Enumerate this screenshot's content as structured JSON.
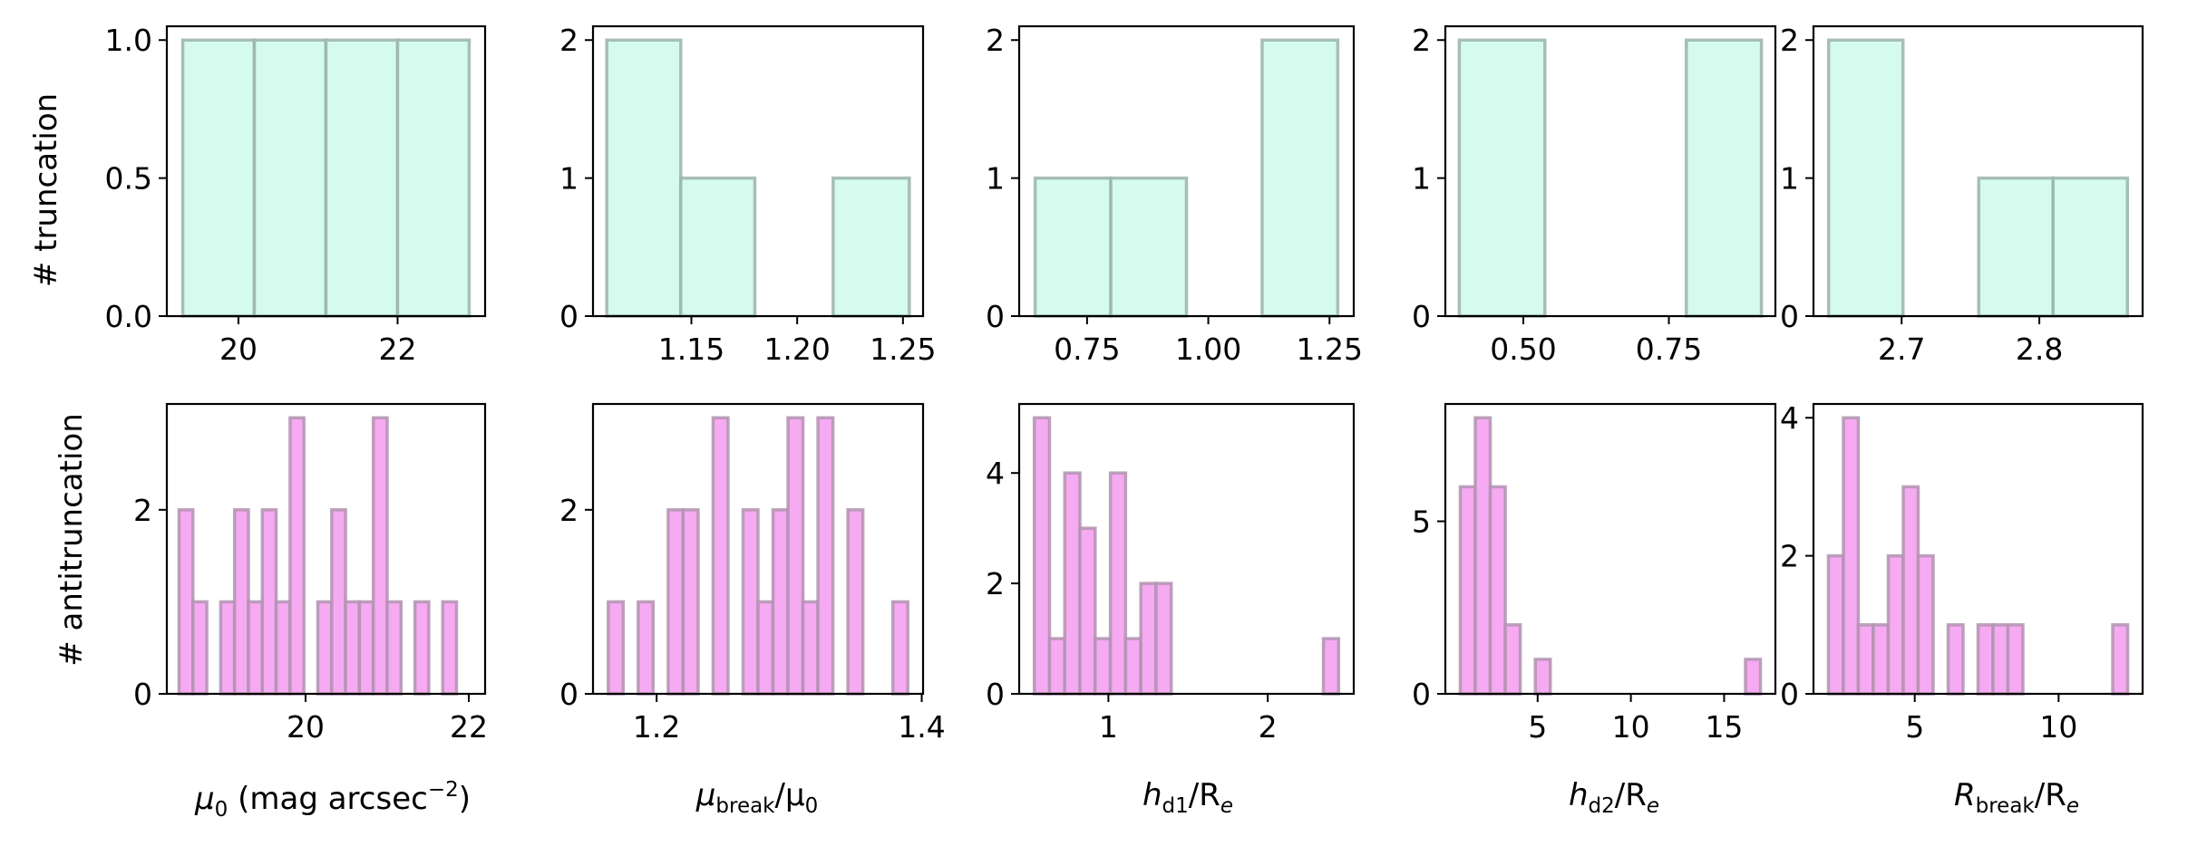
{
  "figure": {
    "row_labels": [
      "# truncation",
      "# antitruncation"
    ],
    "column_labels": [
      {
        "main": "μ",
        "sub": "0",
        "rest": " (mag arcsec",
        "sup": "−2",
        "tail": ")"
      },
      {
        "main": "μ",
        "sub": "break",
        "rest": "/μ",
        "sub2": "0"
      },
      {
        "main": "h",
        "sub": "d1",
        "rest": "/R",
        "sub2": "e"
      },
      {
        "main": "h",
        "sub": "d2",
        "rest": "/R",
        "sub2": "e"
      },
      {
        "main": "R",
        "sub": "break",
        "rest": "/R",
        "sub2": "e"
      }
    ]
  },
  "colors": {
    "truncation_fill": "#d4fbee",
    "truncation_edge": "#9bb3aa",
    "antitruncation_fill": "#f6aaf2",
    "antitruncation_edge": "#b193b0"
  },
  "chart_data": [
    {
      "type": "bar",
      "row": "truncation",
      "variable": "mu0",
      "bin_edges": [
        19.3,
        20.2,
        21.1,
        22.0,
        22.9
      ],
      "counts": [
        1,
        1,
        1,
        1
      ],
      "xlim": [
        19.1,
        23.1
      ],
      "ylim": [
        0,
        1.05
      ],
      "xticks": [
        20,
        22
      ],
      "xticklabels": [
        "20",
        "22"
      ],
      "yticks": [
        0,
        0.5,
        1.0
      ],
      "yticklabels": [
        "0.0",
        "0.5",
        "1.0"
      ],
      "ylabel": "# truncation",
      "xlabel": ""
    },
    {
      "type": "bar",
      "row": "truncation",
      "variable": "mu_break/mu0",
      "bin_edges": [
        1.11,
        1.145,
        1.18,
        1.217,
        1.253
      ],
      "counts": [
        2,
        1,
        0,
        1
      ],
      "xlim": [
        1.1035,
        1.2595
      ],
      "ylim": [
        0,
        2.1
      ],
      "xticks": [
        1.15,
        1.2,
        1.25
      ],
      "xticklabels": [
        "1.15",
        "1.20",
        "1.25"
      ],
      "yticks": [
        0,
        1,
        2
      ],
      "yticklabels": [
        "0",
        "1",
        "2"
      ],
      "ylabel": "",
      "xlabel": ""
    },
    {
      "type": "bar",
      "row": "truncation",
      "variable": "hd1/Re",
      "bin_edges": [
        0.643,
        0.799,
        0.955,
        1.111,
        1.267
      ],
      "counts": [
        1,
        1,
        0,
        2
      ],
      "xlim": [
        0.61,
        1.3
      ],
      "ylim": [
        0,
        2.1
      ],
      "xticks": [
        0.75,
        1.0,
        1.25
      ],
      "xticklabels": [
        "0.75",
        "1.00",
        "1.25"
      ],
      "yticks": [
        0,
        1,
        2
      ],
      "yticklabels": [
        "0",
        "1",
        "2"
      ],
      "ylabel": "",
      "xlabel": ""
    },
    {
      "type": "bar",
      "row": "truncation",
      "variable": "hd2/Re",
      "bin_edges": [
        0.39,
        0.537,
        0.78,
        0.909
      ],
      "counts": [
        2,
        0,
        2
      ],
      "xlim": [
        0.366,
        0.933
      ],
      "ylim": [
        0,
        2.1
      ],
      "xticks": [
        0.5,
        0.75
      ],
      "xticklabels": [
        "0.50",
        "0.75"
      ],
      "yticks": [
        0,
        1,
        2
      ],
      "yticklabels": [
        "0",
        "1",
        "2"
      ],
      "ylabel": "",
      "xlabel": ""
    },
    {
      "type": "bar",
      "row": "truncation",
      "variable": "R_break/Re",
      "bin_edges": [
        2.647,
        2.701,
        2.756,
        2.81,
        2.864
      ],
      "counts": [
        2,
        0,
        1,
        1
      ],
      "xlim": [
        2.636,
        2.875
      ],
      "ylim": [
        0,
        2.1
      ],
      "xticks": [
        2.7,
        2.8
      ],
      "xticklabels": [
        "2.7",
        "2.8"
      ],
      "yticks": [
        0,
        1,
        2
      ],
      "yticklabels": [
        "0",
        "1",
        "2"
      ],
      "ylabel": "",
      "xlabel": ""
    },
    {
      "type": "bar",
      "row": "antitruncation",
      "variable": "mu0",
      "bin_edges": [
        18.45,
        18.62,
        18.79,
        18.96,
        19.13,
        19.3,
        19.47,
        19.64,
        19.81,
        19.98,
        20.15,
        20.32,
        20.49,
        20.66,
        20.83,
        21.0,
        21.17,
        21.34,
        21.51,
        21.68,
        21.85
      ],
      "counts": [
        2,
        1,
        0,
        1,
        2,
        1,
        2,
        1,
        3,
        0,
        1,
        2,
        1,
        1,
        3,
        1,
        0,
        1,
        0,
        1
      ],
      "xlim": [
        18.3,
        22.2
      ],
      "ylim": [
        0,
        3.15
      ],
      "xticks": [
        20,
        22
      ],
      "xticklabels": [
        "20",
        "22"
      ],
      "yticks": [
        0,
        2
      ],
      "yticklabels": [
        "0",
        "2"
      ],
      "ylabel": "# antitruncation",
      "xlabel": "μ0 (mag arcsec−2)"
    },
    {
      "type": "bar",
      "row": "antitruncation",
      "variable": "mu_break/mu0",
      "bin_edges": [
        1.1635,
        1.1748,
        1.1861,
        1.1974,
        1.2087,
        1.22,
        1.2313,
        1.2426,
        1.2539,
        1.2652,
        1.2765,
        1.2878,
        1.2991,
        1.3104,
        1.3217,
        1.333,
        1.3443,
        1.3556,
        1.3669,
        1.3782,
        1.3895
      ],
      "counts": [
        1,
        0,
        1,
        0,
        2,
        2,
        0,
        3,
        0,
        2,
        1,
        2,
        3,
        1,
        3,
        0,
        2,
        0,
        0,
        1
      ],
      "xlim": [
        1.152,
        1.401
      ],
      "ylim": [
        0,
        3.15
      ],
      "xticks": [
        1.2,
        1.4
      ],
      "xticklabels": [
        "1.2",
        "1.4"
      ],
      "yticks": [
        0,
        2
      ],
      "yticklabels": [
        "0",
        "2"
      ],
      "ylabel": "",
      "xlabel": "μbreak/μ0"
    },
    {
      "type": "bar",
      "row": "antitruncation",
      "variable": "hd1/Re",
      "bin_edges": [
        0.535,
        0.6305,
        0.726,
        0.8215,
        0.917,
        1.0125,
        1.108,
        1.2035,
        1.299,
        1.3945,
        1.49,
        1.5855,
        1.681,
        1.7765,
        1.872,
        1.9675,
        2.063,
        2.1585,
        2.254,
        2.3495,
        2.445
      ],
      "counts": [
        5,
        1,
        4,
        3,
        1,
        4,
        1,
        2,
        2,
        0,
        0,
        0,
        0,
        0,
        0,
        0,
        0,
        0,
        0,
        1
      ],
      "xlim": [
        0.44,
        2.54
      ],
      "ylim": [
        0,
        5.25
      ],
      "xticks": [
        1,
        2
      ],
      "xticklabels": [
        "1",
        "2"
      ],
      "yticks": [
        0,
        2,
        4
      ],
      "yticklabels": [
        "0",
        "2",
        "4"
      ],
      "ylabel": "",
      "xlabel": "hd1/Re"
    },
    {
      "type": "bar",
      "row": "antitruncation",
      "variable": "hd2/Re",
      "bin_edges": [
        0.85,
        1.655,
        2.46,
        3.265,
        4.07,
        4.875,
        5.68,
        6.485,
        7.29,
        8.095,
        8.9,
        9.705,
        10.51,
        11.315,
        12.12,
        12.925,
        13.73,
        14.535,
        15.34,
        16.145,
        16.95
      ],
      "counts": [
        6,
        8,
        6,
        2,
        0,
        1,
        0,
        0,
        0,
        0,
        0,
        0,
        0,
        0,
        0,
        0,
        0,
        0,
        0,
        1
      ],
      "xlim": [
        0.05,
        17.75
      ],
      "ylim": [
        0,
        8.4
      ],
      "xticks": [
        5,
        10,
        15
      ],
      "xticklabels": [
        "5",
        "10",
        "15"
      ],
      "yticks": [
        0,
        5
      ],
      "yticklabels": [
        "0",
        "5"
      ],
      "ylabel": "",
      "xlabel": "hd2/Re"
    },
    {
      "type": "bar",
      "row": "antitruncation",
      "variable": "R_break/Re",
      "bin_edges": [
        2.0,
        2.52,
        3.04,
        3.56,
        4.08,
        4.6,
        5.12,
        5.64,
        6.16,
        6.68,
        7.2,
        7.72,
        8.24,
        8.76,
        9.28,
        9.8,
        10.32,
        10.84,
        11.36,
        11.88,
        12.4
      ],
      "counts": [
        2,
        4,
        1,
        1,
        2,
        3,
        2,
        0,
        1,
        0,
        1,
        1,
        1,
        0,
        0,
        0,
        0,
        0,
        0,
        1
      ],
      "xlim": [
        1.48,
        12.92
      ],
      "ylim": [
        0,
        4.2
      ],
      "xticks": [
        5,
        10
      ],
      "xticklabels": [
        "5",
        "10"
      ],
      "yticks": [
        0,
        2,
        4
      ],
      "yticklabels": [
        "0",
        "2",
        "4"
      ],
      "ylabel": "",
      "xlabel": "Rbreak/Re"
    }
  ]
}
